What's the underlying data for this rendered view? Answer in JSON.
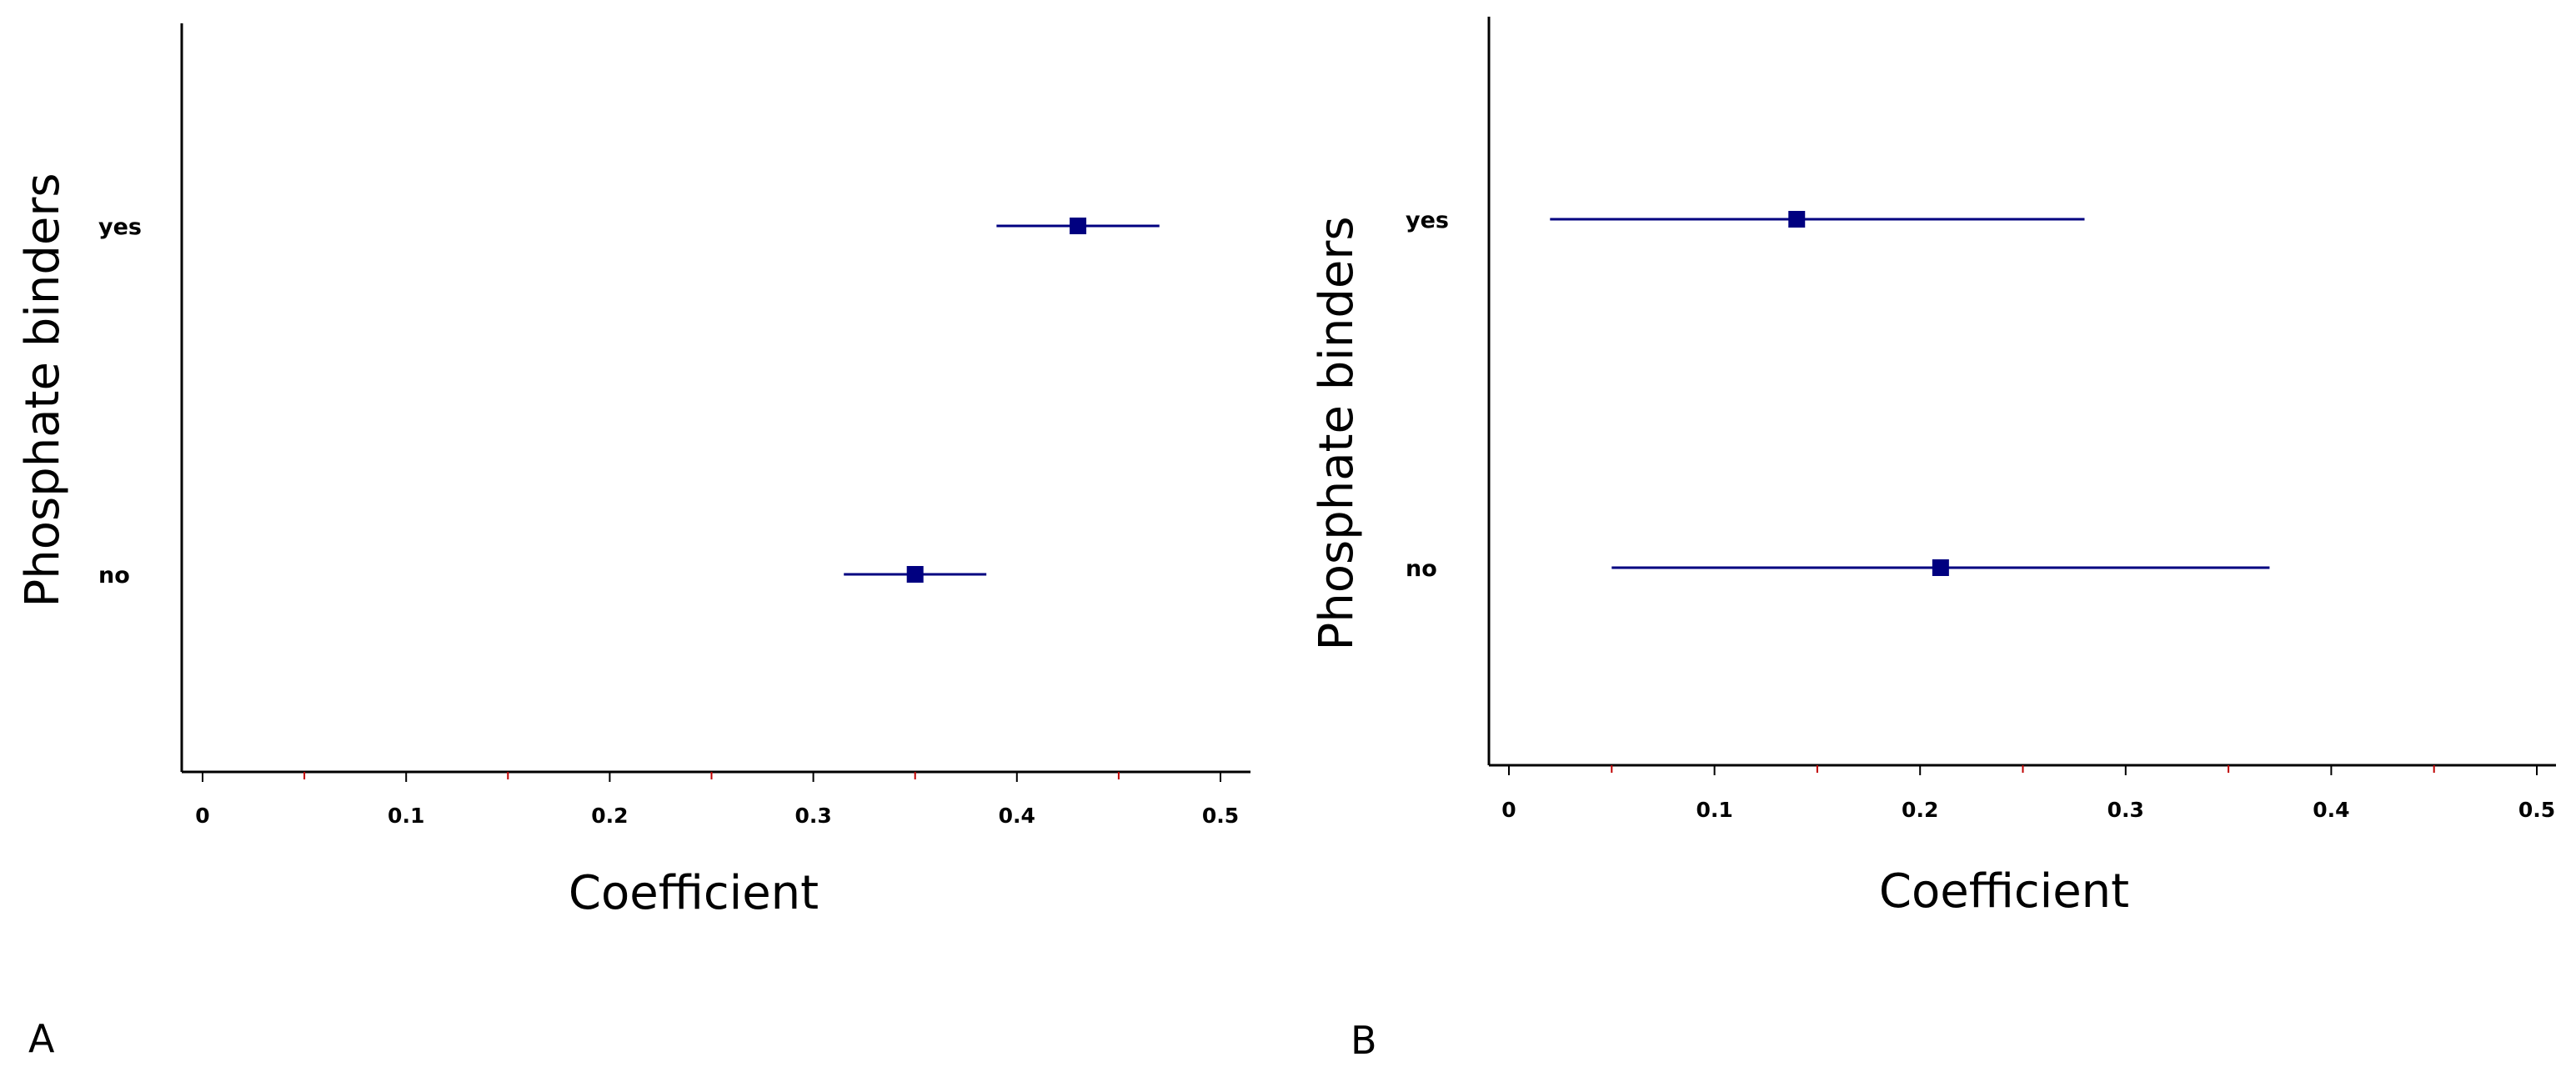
{
  "colors": {
    "series": "#000080",
    "axis": "#000000",
    "minor_tick": "#c00000",
    "background": "#ffffff"
  },
  "chart_data": [
    {
      "type": "scatter",
      "panel_label": "A",
      "xlabel": "Coefficient",
      "ylabel": "Phosphate binders",
      "categories": [
        "yes",
        "no"
      ],
      "xlim": [
        -0.01,
        0.515
      ],
      "major_ticks": [
        0,
        0.1,
        0.2,
        0.3,
        0.4,
        0.5
      ],
      "tick_labels": [
        "0",
        "0.1",
        "0.2",
        "0.3",
        "0.4",
        "0.5"
      ],
      "minor_ticks": [
        0.05,
        0.15,
        0.25,
        0.35,
        0.45
      ],
      "estimates": [
        {
          "category": "yes",
          "value": 0.43,
          "ci_low": 0.39,
          "ci_high": 0.47
        },
        {
          "category": "no",
          "value": 0.35,
          "ci_low": 0.315,
          "ci_high": 0.385
        }
      ]
    },
    {
      "type": "scatter",
      "panel_label": "B",
      "xlabel": "Coefficient",
      "ylabel": "Phosphate binders",
      "categories": [
        "yes",
        "no"
      ],
      "xlim": [
        -0.01,
        0.515
      ],
      "major_ticks": [
        0,
        0.1,
        0.2,
        0.3,
        0.4,
        0.5
      ],
      "tick_labels": [
        "0",
        "0.1",
        "0.2",
        "0.3",
        "0.4",
        "0.5"
      ],
      "minor_ticks": [
        0.05,
        0.15,
        0.25,
        0.35,
        0.45
      ],
      "estimates": [
        {
          "category": "yes",
          "value": 0.14,
          "ci_low": 0.02,
          "ci_high": 0.28
        },
        {
          "category": "no",
          "value": 0.21,
          "ci_low": 0.05,
          "ci_high": 0.37
        }
      ]
    }
  ]
}
